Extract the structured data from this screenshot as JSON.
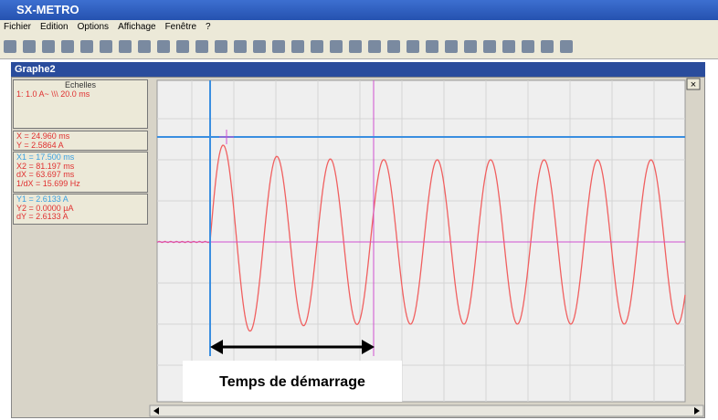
{
  "app_title": "SX-METRO",
  "menu": [
    "Fichier",
    "Edition",
    "Options",
    "Affichage",
    "Fenêtre",
    "?"
  ],
  "window_title": "Graphe2",
  "scales": {
    "title": "Echelles",
    "line": "1: 1.0 A~  \\\\\\  20.0 ms"
  },
  "cursor": [
    "X = 24.960 ms",
    "Y = 2.5864 A"
  ],
  "x_measures": [
    "X1 = 17.500 ms",
    "X2 = 81.197 ms",
    "dX = 63.697 ms",
    "1/dX = 15.699 Hz"
  ],
  "y_measures": [
    "Y1 = 2.6133 A",
    "Y2 = 0.0000 µA",
    "dY = 2.6133 A"
  ],
  "annotation": "Temps de démarrage"
}
